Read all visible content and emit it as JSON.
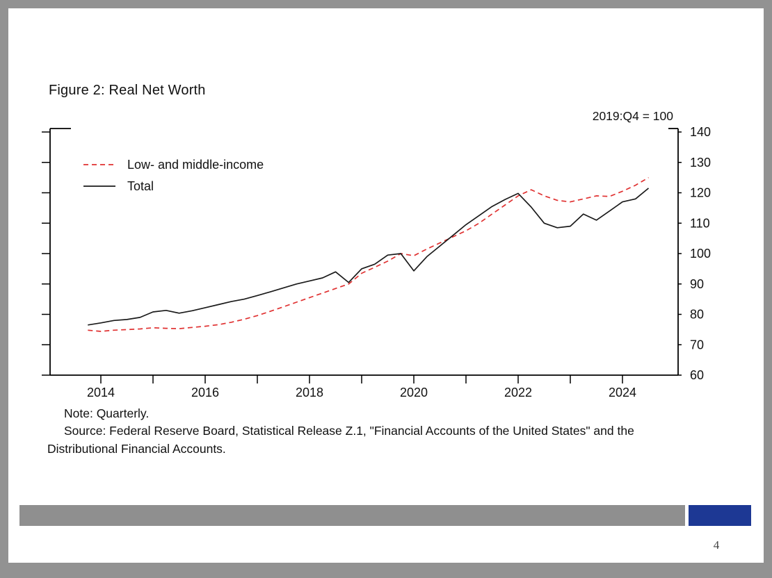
{
  "slide": {
    "title": "Figure 2: Real Net Worth",
    "index_note": "2019:Q4 = 100",
    "note_line": "Note: Quarterly.",
    "source_line": "Source: Federal Reserve Board, Statistical Release Z.1,  \"Financial Accounts of the United States\" and the Distributional Financial Accounts.",
    "page_number": "4"
  },
  "colors": {
    "footer_bar": "#8f8f8f",
    "footer_accent": "#1d3894",
    "axis": "#000000"
  },
  "chart_data": {
    "type": "line",
    "title": "Figure 2: Real Net Worth",
    "unit_label": "2019:Q4 = 100",
    "note": "Note: Quarterly.",
    "source": "Source: Federal Reserve Board, Statistical Release Z.1, \"Financial Accounts of the United States\" and the Distributional Financial Accounts.",
    "x_start": 2013.75,
    "x_step": 0.25,
    "x_unit": "quarterly decimal year",
    "ylim": [
      60,
      140
    ],
    "y_ticks": [
      60,
      70,
      80,
      90,
      100,
      110,
      120,
      130,
      140
    ],
    "x_ticks": [
      2014,
      2015,
      2016,
      2017,
      2018,
      2019,
      2020,
      2021,
      2022,
      2023,
      2024
    ],
    "x_label_ticks": [
      2014,
      2016,
      2018,
      2020,
      2022,
      2024
    ],
    "grid": false,
    "legend_position": "top-left-inside",
    "series": [
      {
        "name": "Low- and middle-income",
        "color": "#e03131",
        "dash": "7 5",
        "values": [
          74.8,
          74.4,
          74.8,
          75.0,
          75.2,
          75.6,
          75.4,
          75.3,
          75.7,
          76.1,
          76.6,
          77.4,
          78.4,
          79.6,
          81.0,
          82.5,
          84.0,
          85.5,
          87.0,
          88.5,
          90.0,
          93.5,
          95.5,
          97.5,
          100.0,
          99.3,
          101.5,
          103.5,
          105.5,
          107.5,
          110.0,
          113.0,
          116.0,
          119.0,
          121.0,
          119.0,
          117.5,
          117.0,
          118.0,
          119.0,
          118.8,
          120.5,
          122.5,
          125.0
        ]
      },
      {
        "name": "Total",
        "color": "#1a1a1a",
        "dash": "",
        "values": [
          76.5,
          77.2,
          78.0,
          78.3,
          79.0,
          80.8,
          81.3,
          80.4,
          81.2,
          82.2,
          83.2,
          84.2,
          85.0,
          86.2,
          87.4,
          88.7,
          90.0,
          91.0,
          92.0,
          94.0,
          90.5,
          95.0,
          96.5,
          99.5,
          100.0,
          94.3,
          99.0,
          102.5,
          106.0,
          109.5,
          112.5,
          115.5,
          117.8,
          119.8,
          115.3,
          110.0,
          108.5,
          109.0,
          113.0,
          111.0,
          114.0,
          117.0,
          118.0,
          121.5
        ]
      }
    ]
  }
}
